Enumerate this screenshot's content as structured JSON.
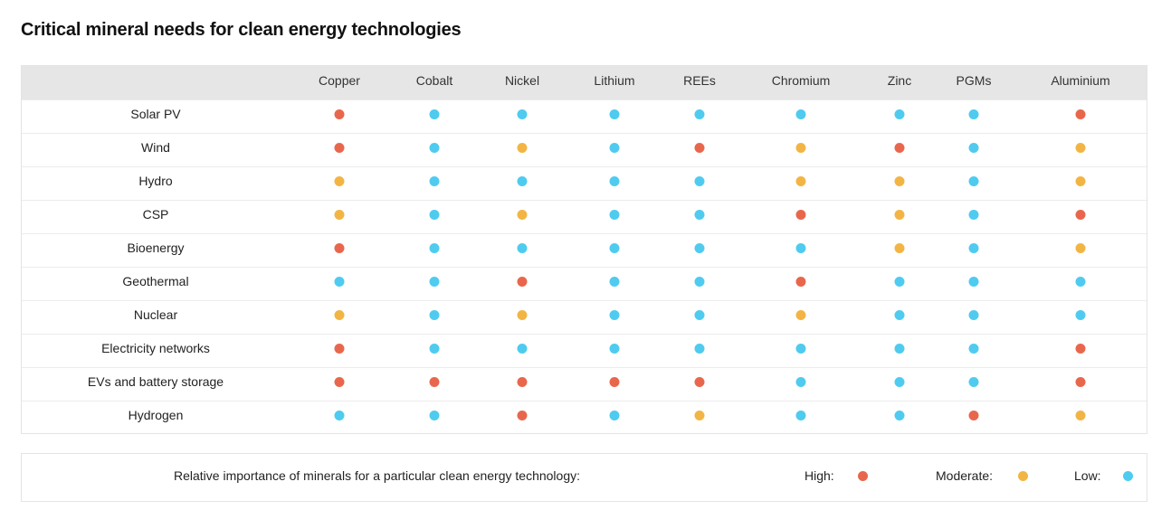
{
  "title": "Critical mineral needs for clean energy technologies",
  "chart_data": {
    "type": "table",
    "title": "Critical mineral needs for clean energy technologies",
    "columns": [
      "Copper",
      "Cobalt",
      "Nickel",
      "Lithium",
      "REEs",
      "Chromium",
      "Zinc",
      "PGMs",
      "Aluminium"
    ],
    "rows": [
      {
        "label": "Solar PV",
        "values": [
          "high",
          "low",
          "low",
          "low",
          "low",
          "low",
          "low",
          "low",
          "high"
        ]
      },
      {
        "label": "Wind",
        "values": [
          "high",
          "low",
          "moderate",
          "low",
          "high",
          "moderate",
          "high",
          "low",
          "moderate"
        ]
      },
      {
        "label": "Hydro",
        "values": [
          "moderate",
          "low",
          "low",
          "low",
          "low",
          "moderate",
          "moderate",
          "low",
          "moderate"
        ]
      },
      {
        "label": "CSP",
        "values": [
          "moderate",
          "low",
          "moderate",
          "low",
          "low",
          "high",
          "moderate",
          "low",
          "high"
        ]
      },
      {
        "label": "Bioenergy",
        "values": [
          "high",
          "low",
          "low",
          "low",
          "low",
          "low",
          "moderate",
          "low",
          "moderate"
        ]
      },
      {
        "label": "Geothermal",
        "values": [
          "low",
          "low",
          "high",
          "low",
          "low",
          "high",
          "low",
          "low",
          "low"
        ]
      },
      {
        "label": "Nuclear",
        "values": [
          "moderate",
          "low",
          "moderate",
          "low",
          "low",
          "moderate",
          "low",
          "low",
          "low"
        ]
      },
      {
        "label": "Electricity networks",
        "values": [
          "high",
          "low",
          "low",
          "low",
          "low",
          "low",
          "low",
          "low",
          "high"
        ]
      },
      {
        "label": "EVs and battery storage",
        "values": [
          "high",
          "high",
          "high",
          "high",
          "high",
          "low",
          "low",
          "low",
          "high"
        ]
      },
      {
        "label": "Hydrogen",
        "values": [
          "low",
          "low",
          "high",
          "low",
          "moderate",
          "low",
          "low",
          "high",
          "moderate"
        ]
      }
    ],
    "levels": {
      "high": {
        "label": "High:",
        "color": "#e8674c"
      },
      "moderate": {
        "label": "Moderate:",
        "color": "#f2b544"
      },
      "low": {
        "label": "Low:",
        "color": "#4fcbef"
      }
    }
  },
  "legend": {
    "caption": "Relative importance of minerals for a particular clean energy technology:"
  }
}
